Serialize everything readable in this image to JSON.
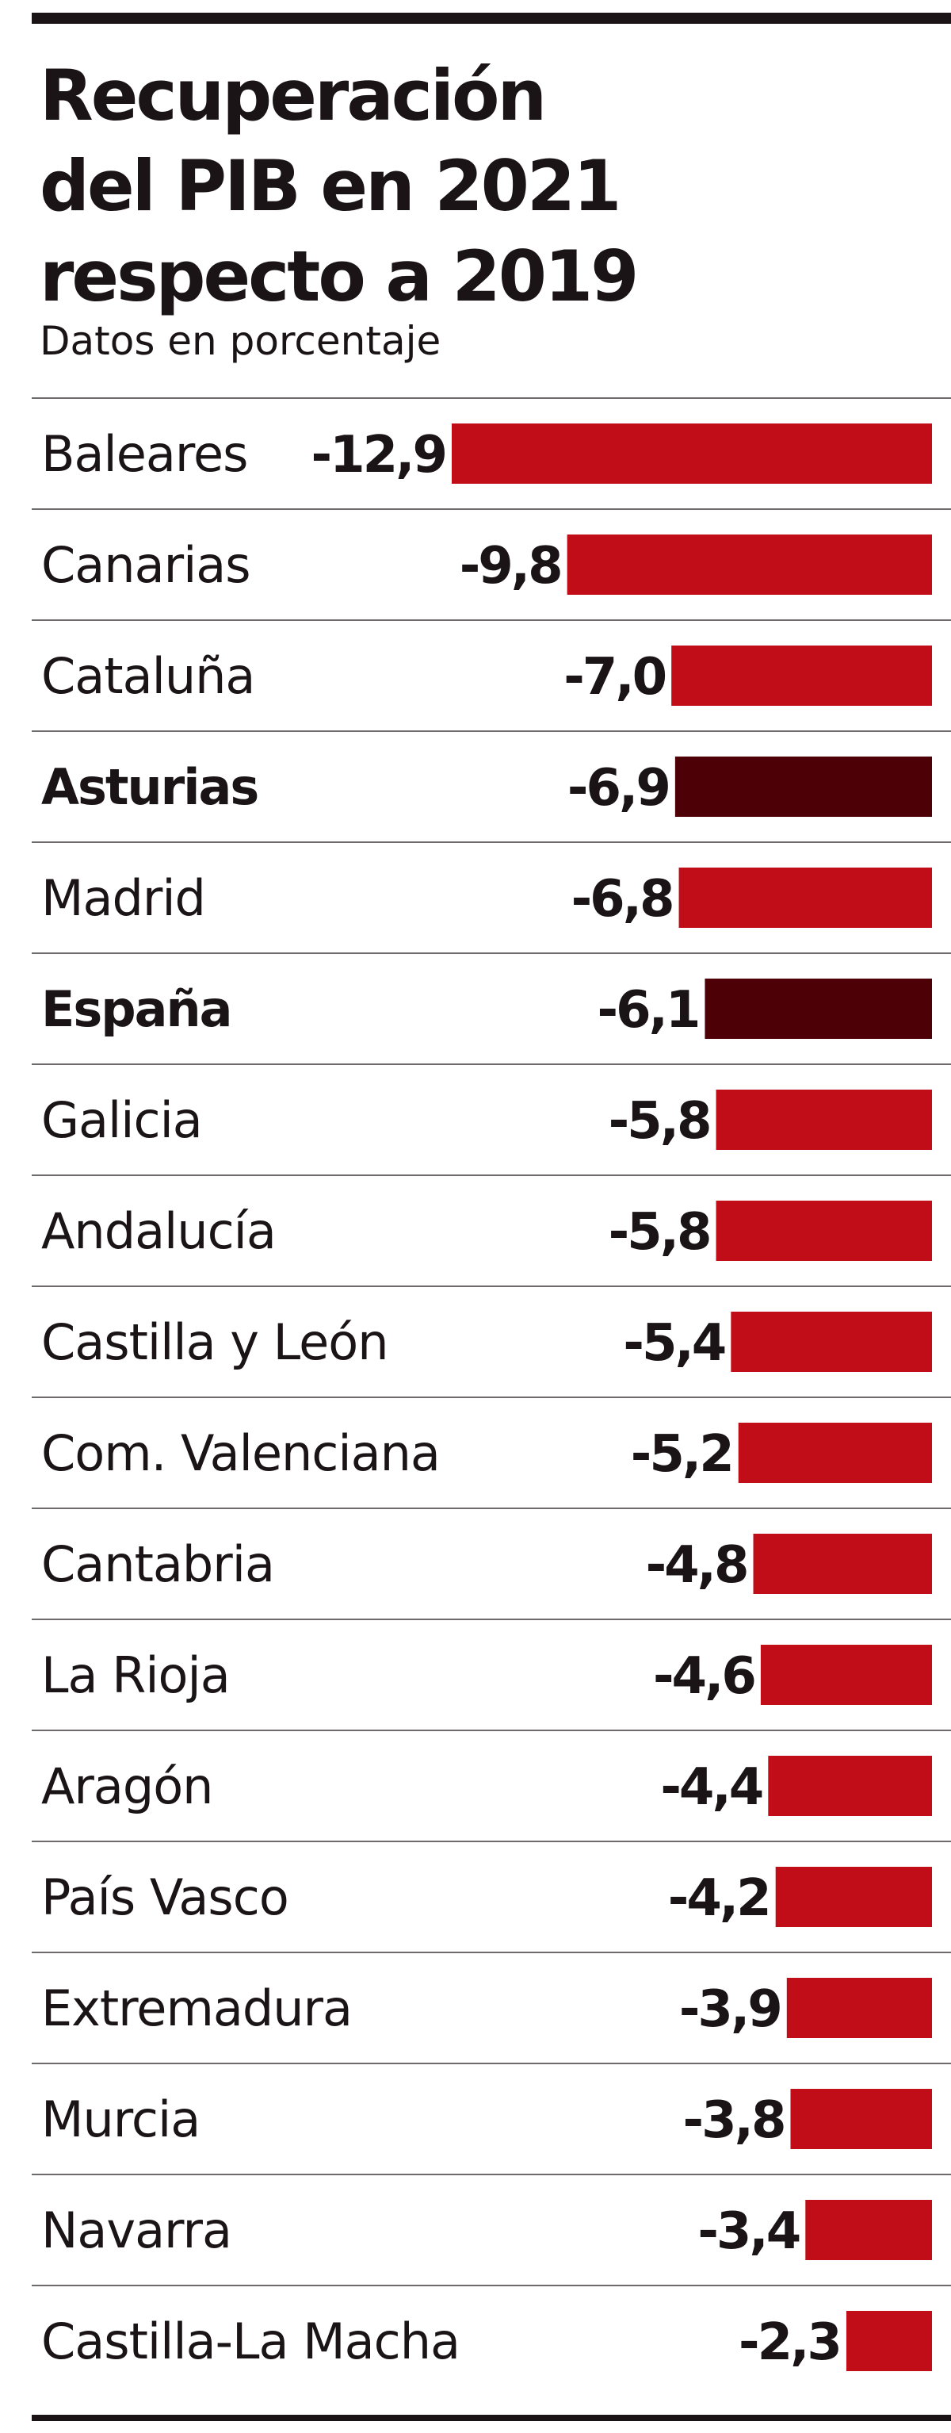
{
  "title_lines": [
    "Recuperación",
    "del PIB en 2021",
    "respecto a 2019"
  ],
  "subtitle": "Datos en porcentaje",
  "colors": {
    "bar": "#c00d18",
    "highlight_bar": "#4d0005",
    "text": "#1a1416",
    "rule": "#1a1416",
    "separator": "#6f6a6b"
  },
  "chart_data": {
    "type": "bar",
    "orientation": "horizontal",
    "title": "Recuperación del PIB en 2021 respecto a 2019",
    "subtitle": "Datos en porcentaje",
    "unit": "%",
    "xlim": [
      -12.9,
      0
    ],
    "categories": [
      "Baleares",
      "Canarias",
      "Cataluña",
      "Asturias",
      "Madrid",
      "España",
      "Galicia",
      "Andalucía",
      "Castilla y León",
      "Com. Valenciana",
      "Cantabria",
      "La Rioja",
      "Aragón",
      "País Vasco",
      "Extremadura",
      "Murcia",
      "Navarra",
      "Castilla-La Macha"
    ],
    "values": [
      -12.9,
      -9.8,
      -7.0,
      -6.9,
      -6.8,
      -6.1,
      -5.8,
      -5.8,
      -5.4,
      -5.2,
      -4.8,
      -4.6,
      -4.4,
      -4.2,
      -3.9,
      -3.8,
      -3.4,
      -2.3
    ],
    "value_labels": [
      "-12,9",
      "-9,8",
      "-7,0",
      "-6,9",
      "-6,8",
      "-6,1",
      "-5,8",
      "-5,8",
      "-5,4",
      "-5,2",
      "-4,8",
      "-4,6",
      "-4,4",
      "-4,2",
      "-3,9",
      "-3,8",
      "-3,4",
      "-2,3"
    ],
    "highlighted": [
      "Asturias",
      "España"
    ]
  }
}
